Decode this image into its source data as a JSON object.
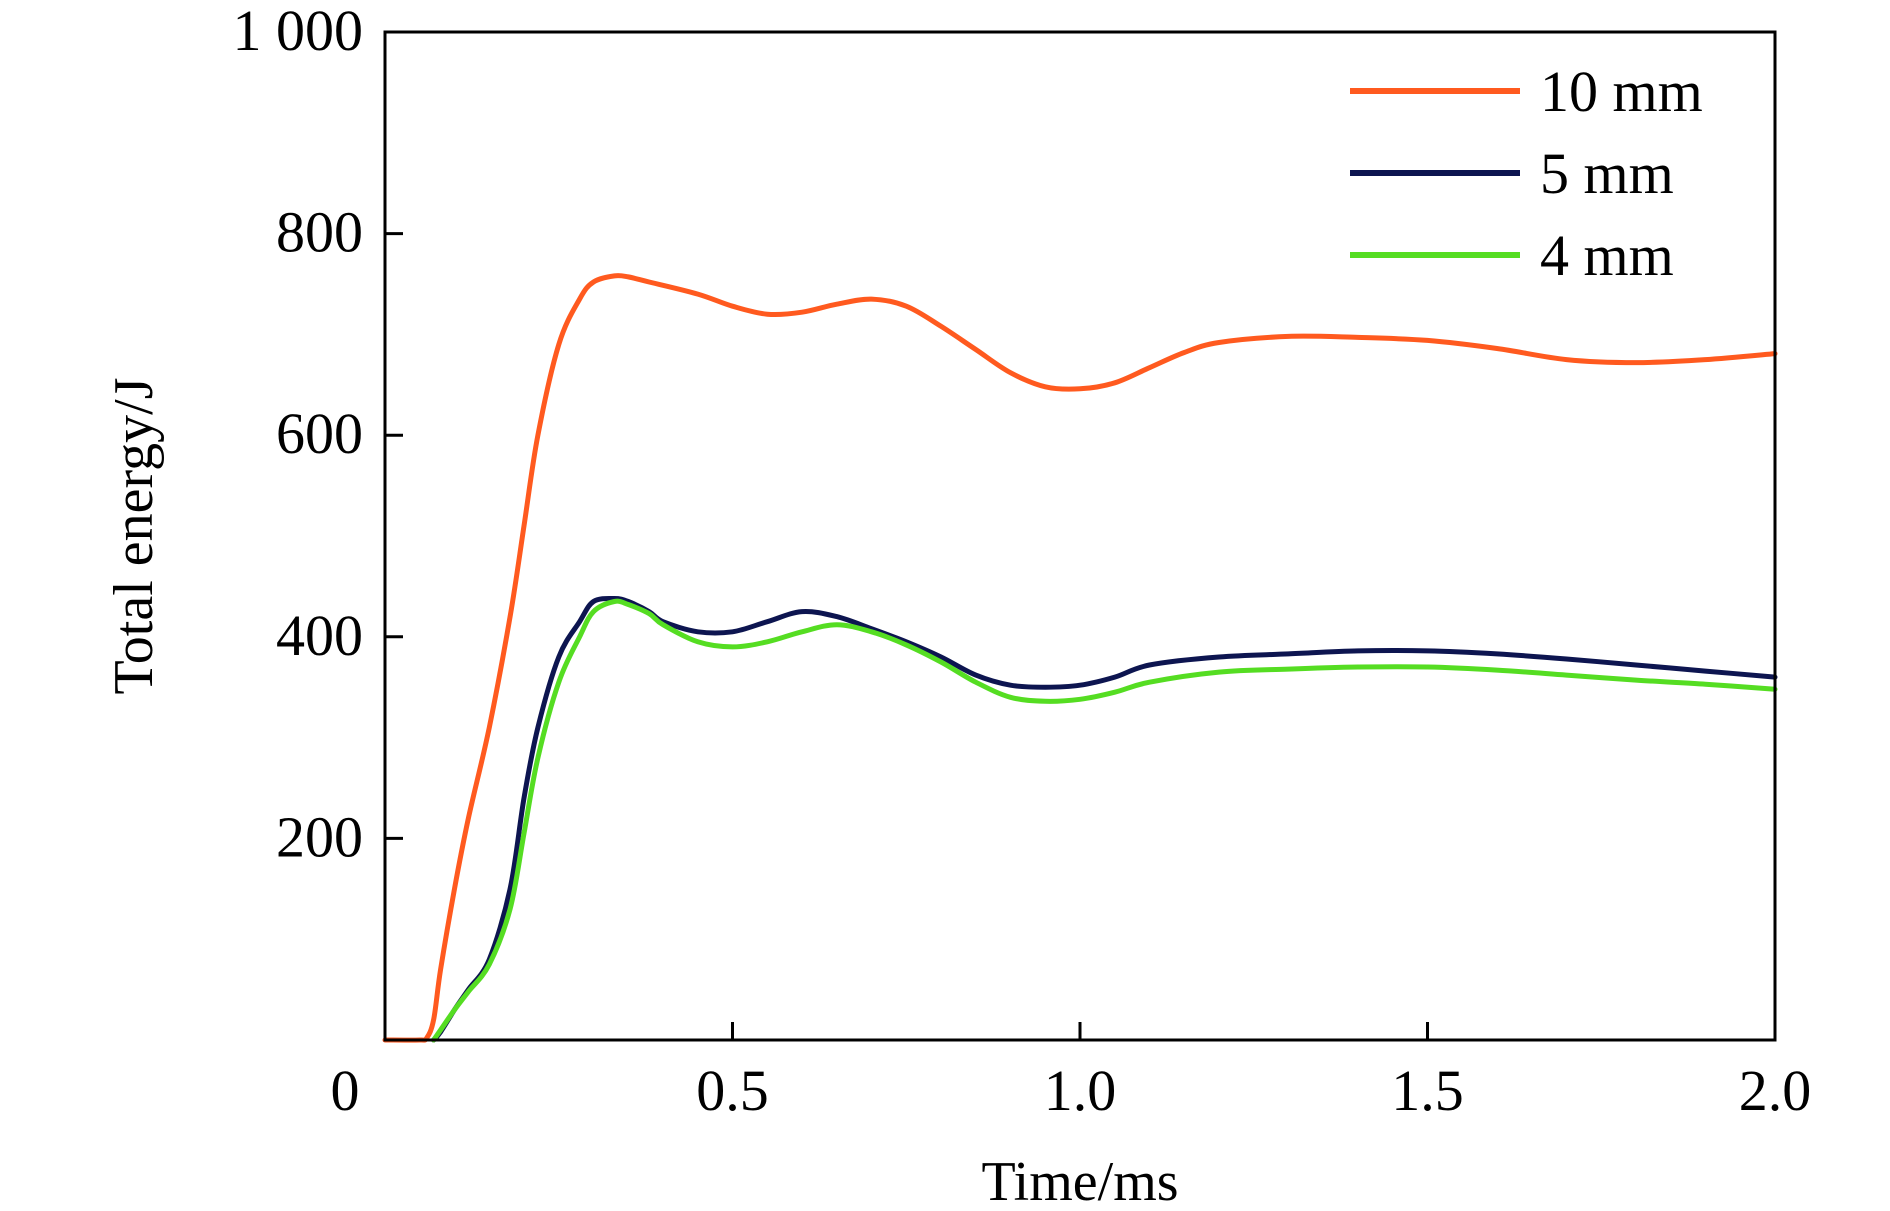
{
  "chart_data": {
    "type": "line",
    "title": "",
    "xlabel": "Time/ms",
    "ylabel": "Total energy/J",
    "xlim": [
      0,
      2.0
    ],
    "ylim": [
      0,
      1000
    ],
    "xticks": [
      0,
      0.5,
      1.0,
      1.5,
      2.0
    ],
    "xtick_labels": [
      "0",
      "0.5",
      "1.0",
      "1.5",
      "2.0"
    ],
    "yticks": [
      200,
      400,
      600,
      800,
      1000
    ],
    "ytick_labels": [
      "200",
      "400",
      "600",
      "800",
      "1 000"
    ],
    "grid": false,
    "legend_position": "top-right",
    "series": [
      {
        "name": "10 mm",
        "color": "#ff5a1f",
        "x": [
          0,
          0.05,
          0.06,
          0.07,
          0.08,
          0.1,
          0.12,
          0.15,
          0.18,
          0.2,
          0.22,
          0.25,
          0.28,
          0.3,
          0.33,
          0.35,
          0.38,
          0.45,
          0.5,
          0.55,
          0.6,
          0.65,
          0.7,
          0.75,
          0.8,
          0.85,
          0.9,
          0.95,
          1.0,
          1.05,
          1.1,
          1.15,
          1.2,
          1.3,
          1.4,
          1.5,
          1.6,
          1.7,
          1.8,
          1.9,
          2.0
        ],
        "y": [
          0,
          0,
          2,
          20,
          70,
          150,
          220,
          310,
          420,
          510,
          600,
          690,
          735,
          752,
          758,
          757,
          752,
          740,
          728,
          720,
          722,
          730,
          735,
          728,
          708,
          685,
          662,
          648,
          646,
          652,
          667,
          682,
          692,
          698,
          697,
          694,
          686,
          675,
          672,
          675,
          681
        ]
      },
      {
        "name": "5 mm",
        "color": "#0d1550",
        "x": [
          0.07,
          0.08,
          0.1,
          0.12,
          0.15,
          0.18,
          0.2,
          0.22,
          0.25,
          0.28,
          0.3,
          0.33,
          0.35,
          0.38,
          0.4,
          0.45,
          0.5,
          0.55,
          0.6,
          0.65,
          0.7,
          0.75,
          0.8,
          0.85,
          0.9,
          0.95,
          1.0,
          1.05,
          1.1,
          1.2,
          1.3,
          1.4,
          1.5,
          1.6,
          1.7,
          1.8,
          1.9,
          2.0
        ],
        "y": [
          0,
          8,
          30,
          50,
          80,
          150,
          240,
          310,
          380,
          415,
          435,
          438,
          435,
          425,
          415,
          405,
          405,
          415,
          425,
          420,
          408,
          395,
          380,
          362,
          352,
          350,
          352,
          360,
          372,
          380,
          383,
          386,
          386,
          383,
          378,
          372,
          366,
          360
        ]
      },
      {
        "name": "4 mm",
        "color": "#55dd22",
        "x": [
          0.07,
          0.08,
          0.1,
          0.12,
          0.15,
          0.18,
          0.2,
          0.22,
          0.25,
          0.28,
          0.3,
          0.33,
          0.35,
          0.38,
          0.4,
          0.45,
          0.5,
          0.55,
          0.6,
          0.65,
          0.7,
          0.75,
          0.8,
          0.85,
          0.9,
          0.95,
          1.0,
          1.05,
          1.1,
          1.2,
          1.3,
          1.4,
          1.5,
          1.6,
          1.7,
          1.8,
          1.9,
          2.0
        ],
        "y": [
          0,
          10,
          30,
          48,
          75,
          130,
          205,
          280,
          355,
          400,
          425,
          435,
          432,
          423,
          412,
          395,
          390,
          395,
          405,
          412,
          405,
          392,
          375,
          355,
          340,
          336,
          338,
          345,
          355,
          365,
          368,
          370,
          370,
          367,
          362,
          357,
          353,
          348
        ]
      }
    ]
  }
}
